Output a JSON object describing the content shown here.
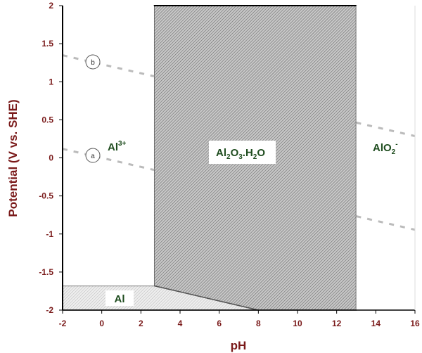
{
  "chart_data": {
    "type": "pourbaix-diagram",
    "xlabel": "pH",
    "ylabel": "Potential (V vs. SHE)",
    "xlim": [
      -2,
      16
    ],
    "ylim": [
      -2,
      2
    ],
    "xticks": [
      "-2",
      "0",
      "2",
      "4",
      "6",
      "8",
      "10",
      "12",
      "14",
      "16"
    ],
    "yticks": [
      "2",
      "1.5",
      "1",
      "0.5",
      "0",
      "-0.5",
      "-1",
      "-1.5",
      "-2"
    ],
    "grid": false,
    "regions": [
      {
        "label": "Al",
        "sup": "",
        "polygon": [
          [
            -2,
            -1.68
          ],
          [
            2.67,
            -1.68
          ],
          [
            8.0,
            -2
          ],
          [
            -2,
            -2
          ]
        ],
        "fill": "light-hatch"
      },
      {
        "label": "Al2O3.H2O",
        "polygon": [
          [
            2.67,
            2
          ],
          [
            13,
            2
          ],
          [
            13,
            -2
          ],
          [
            8.0,
            -2
          ],
          [
            2.67,
            -1.68
          ]
        ],
        "fill": "dark-hatch"
      },
      {
        "label": "Al3+",
        "polygon": [
          [
            -2,
            2
          ],
          [
            2.67,
            2
          ],
          [
            2.67,
            -1.68
          ],
          [
            -2,
            -1.68
          ]
        ],
        "fill": "none"
      },
      {
        "label": "AlO2-",
        "polygon": [
          [
            13,
            2
          ],
          [
            16,
            2
          ],
          [
            16,
            -2
          ],
          [
            13,
            -2
          ]
        ],
        "fill": "none"
      }
    ],
    "water_lines": [
      {
        "name": "a",
        "points": [
          [
            -2,
            0.118
          ],
          [
            2.67,
            -0.158
          ]
        ],
        "points_right": [
          [
            13,
            -0.767
          ],
          [
            16,
            -0.944
          ]
        ]
      },
      {
        "name": "b",
        "points": [
          [
            -2,
            1.348
          ],
          [
            2.67,
            1.072
          ]
        ],
        "points_right": [
          [
            13,
            0.463
          ],
          [
            16,
            0.286
          ]
        ]
      }
    ]
  },
  "labels": {
    "al": "Al",
    "al3_base": "Al",
    "al3_sup": "3+",
    "oxide_a": "Al",
    "oxide_sub1": "2",
    "oxide_b": "O",
    "oxide_sub2": "3",
    "oxide_c": ".H",
    "oxide_sub3": "2",
    "oxide_d": "O",
    "alo2_base": "AlO",
    "alo2_sub": "2",
    "alo2_sup": "-",
    "line_a": "a",
    "line_b": "b"
  }
}
